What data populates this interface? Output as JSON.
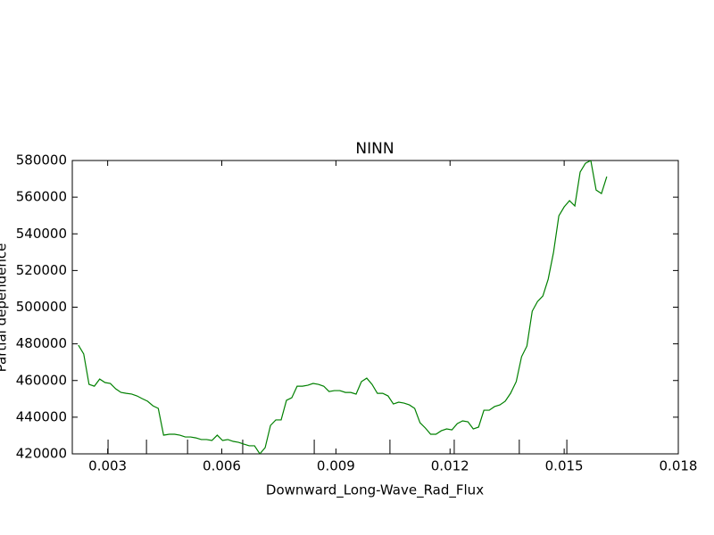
{
  "chart_data": {
    "type": "line",
    "title": "NINN",
    "x_label": "Downward_Long-Wave_Rad_Flux",
    "y_label": "Partial dependence",
    "xlim": [
      0.00207,
      0.018
    ],
    "xticks": [
      0.003,
      0.006,
      0.009,
      0.012,
      0.015,
      0.018
    ],
    "ylim": [
      420000,
      580000
    ],
    "yticks": [
      420000,
      440000,
      460000,
      480000,
      500000,
      520000,
      540000,
      560000,
      580000
    ],
    "deciles": [
      0.00301,
      0.00402,
      0.0051,
      0.00655,
      0.00843,
      0.01042,
      0.01211,
      0.01382,
      0.01507
    ],
    "grid": false,
    "x": [
      0.00223,
      0.00237,
      0.00251,
      0.00265,
      0.00279,
      0.00293,
      0.00307,
      0.00321,
      0.00335,
      0.00349,
      0.00363,
      0.00377,
      0.00391,
      0.00405,
      0.00419,
      0.00433,
      0.00447,
      0.00462,
      0.00476,
      0.0049,
      0.00504,
      0.00518,
      0.00532,
      0.00546,
      0.0056,
      0.00574,
      0.00588,
      0.00602,
      0.00616,
      0.0063,
      0.00644,
      0.00658,
      0.00672,
      0.00686,
      0.007,
      0.00714,
      0.00728,
      0.00742,
      0.00756,
      0.0077,
      0.00784,
      0.00798,
      0.00812,
      0.00826,
      0.0084,
      0.00854,
      0.00868,
      0.00882,
      0.00896,
      0.0091,
      0.00925,
      0.00939,
      0.00953,
      0.00967,
      0.00981,
      0.00995,
      0.01009,
      0.01023,
      0.01037,
      0.01051,
      0.01065,
      0.01079,
      0.01093,
      0.01107,
      0.01121,
      0.01135,
      0.01149,
      0.01163,
      0.01177,
      0.01191,
      0.01205,
      0.01219,
      0.01233,
      0.01247,
      0.01261,
      0.01275,
      0.01289,
      0.01303,
      0.01317,
      0.01331,
      0.01345,
      0.01359,
      0.01374,
      0.01388,
      0.01402,
      0.01416,
      0.0143,
      0.01444,
      0.01458,
      0.01472,
      0.01486,
      0.015,
      0.01514,
      0.01528,
      0.01542,
      0.01556,
      0.0157,
      0.01584,
      0.01598,
      0.01612
    ],
    "series": [
      {
        "color": "#008000",
        "values": [
          479300,
          474500,
          457900,
          456900,
          460800,
          458900,
          458400,
          455500,
          453500,
          453000,
          452600,
          451600,
          450100,
          448700,
          446200,
          444800,
          430200,
          430700,
          430700,
          430200,
          429200,
          429200,
          428700,
          427800,
          427800,
          427300,
          430200,
          427300,
          427800,
          426800,
          426300,
          425300,
          424400,
          424400,
          420000,
          423400,
          435500,
          438500,
          438500,
          449200,
          450600,
          456900,
          456900,
          457400,
          458400,
          457900,
          456900,
          454000,
          454500,
          454500,
          453500,
          453500,
          452600,
          459400,
          461300,
          457900,
          453000,
          453000,
          451600,
          447200,
          448200,
          447700,
          446700,
          444800,
          437000,
          434100,
          430700,
          430700,
          432600,
          433600,
          433100,
          436500,
          438000,
          437500,
          433600,
          434600,
          443800,
          443800,
          445800,
          446700,
          448700,
          453000,
          459400,
          473000,
          478800,
          497800,
          503100,
          506100,
          515300,
          529900,
          549800,
          554700,
          558100,
          555200,
          573700,
          578500,
          580000,
          563900,
          562000,
          571200
        ]
      }
    ]
  }
}
